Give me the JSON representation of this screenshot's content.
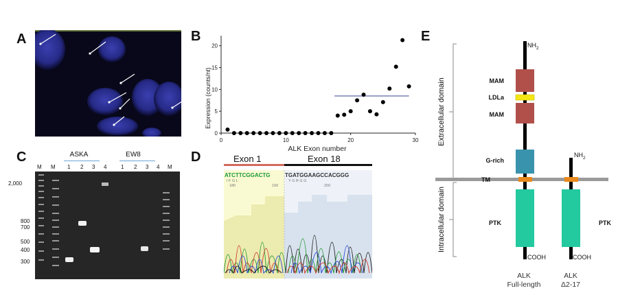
{
  "panels": {
    "a": "A",
    "b": "B",
    "c": "C",
    "d": "D",
    "e": "E"
  },
  "chart_data": {
    "type": "scatter",
    "xlabel": "ALK Exon number",
    "ylabel": "Expression (counts/nt)",
    "xlim": [
      0,
      30
    ],
    "ylim": [
      0,
      22
    ],
    "xticks": [
      "0",
      "10",
      "20",
      "30"
    ],
    "yticks": [
      "0",
      "5",
      "10",
      "15",
      "20"
    ],
    "series": [
      {
        "x": [
          1,
          2,
          3,
          4,
          5,
          6,
          7,
          8,
          9,
          10,
          11,
          12,
          13,
          14,
          15,
          16,
          17,
          18,
          19,
          20,
          21,
          22,
          23,
          24,
          25,
          26,
          27,
          28,
          29
        ],
        "values": [
          0.8,
          0,
          0,
          0,
          0,
          0,
          0,
          0,
          0,
          0,
          0,
          0,
          0,
          0,
          0,
          0,
          0,
          4,
          4.2,
          5,
          7.5,
          8.8,
          5,
          4.3,
          7.1,
          10.2,
          15.2,
          21.3,
          10.7
        ]
      }
    ],
    "reference_line": {
      "x_start": 17.5,
      "x_end": 29,
      "y": 8.5
    },
    "grid": false
  },
  "gel": {
    "group1": "ASKA",
    "group2": "EW8",
    "lane_labels": [
      "M",
      "M",
      "1",
      "2",
      "3",
      "4",
      "1",
      "2",
      "3",
      "4",
      "M"
    ],
    "size_markers": [
      "2,000",
      "800",
      "700",
      "500",
      "400",
      "300"
    ]
  },
  "sequencing": {
    "exon1_label": "Exon 1",
    "exon18_label": "Exon 18",
    "seq_left": "ATCTTCGGACTG",
    "seq_right": "TGATGGAAGCCACGGG",
    "trans_left": "I  F  G  L",
    "trans_right": "Y  G  R  G  G",
    "pos_left": [
      "180",
      "190"
    ],
    "pos_right": [
      "200"
    ]
  },
  "domain_map": {
    "extracellular_label": "Extracellular domain",
    "intracellular_label": "Intracellular domain",
    "domains": [
      "MAM",
      "LDLa",
      "MAM",
      "G-rich",
      "TM",
      "PTK"
    ],
    "right_ptk": "PTK",
    "nh2_full": "NH",
    "nh2_short": "NH",
    "sub2": "2",
    "cooh": "COOH",
    "full_name": "ALK",
    "full_sub": "Full-length",
    "short_name": "ALK",
    "short_sub": "Δ2-17",
    "colors": {
      "mam": "#b1504a",
      "ldla": "#f4e514",
      "grich": "#3a93ad",
      "tm": "#e98a1e",
      "ptk": "#23c99f",
      "membrane": "#9a9a9a"
    }
  }
}
